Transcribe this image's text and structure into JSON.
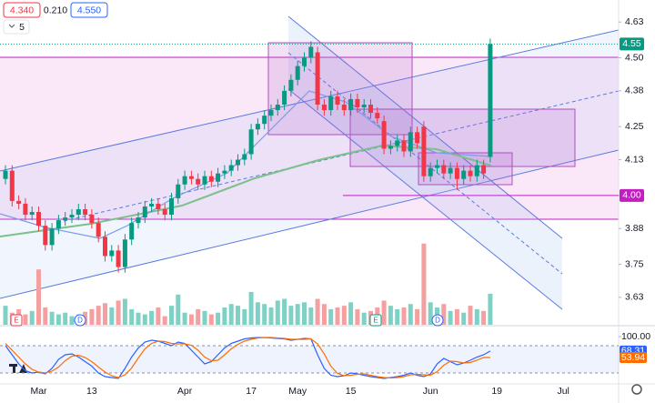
{
  "header": {
    "bid": "4.340",
    "spread": "0.210",
    "ask": "4.550",
    "indicators": "5"
  },
  "events": [
    "E",
    "D",
    "E",
    "D"
  ],
  "chart_data": [
    {
      "type": "candlestick",
      "categories": [
        null,
        null,
        null,
        null,
        null,
        "Mar",
        null,
        null,
        null,
        null,
        null,
        null,
        null,
        "13",
        null,
        null,
        null,
        null,
        null,
        null,
        null,
        null,
        null,
        null,
        null,
        null,
        null,
        "Apr",
        null,
        null,
        null,
        null,
        null,
        null,
        null,
        null,
        null,
        "17",
        null,
        null,
        null,
        null,
        null,
        null,
        "May",
        null,
        null,
        null,
        null,
        null,
        null,
        null,
        "15",
        null,
        null,
        null,
        null,
        null,
        null,
        null,
        null,
        null,
        null,
        null,
        "Jun",
        null,
        null,
        null,
        null,
        null,
        null,
        null,
        null,
        null,
        "19",
        null,
        null,
        null,
        null,
        null,
        null,
        null,
        null,
        null,
        "Jul"
      ],
      "open": [
        4.06,
        4.09,
        3.98,
        3.97,
        3.93,
        3.94,
        3.89,
        3.82,
        3.88,
        3.91,
        3.92,
        3.93,
        3.95,
        3.93,
        3.9,
        3.85,
        3.78,
        3.8,
        3.74,
        3.84,
        3.9,
        3.92,
        3.96,
        3.97,
        3.95,
        3.93,
        3.99,
        4.04,
        4.07,
        4.06,
        4.04,
        4.07,
        4.05,
        4.08,
        4.09,
        4.11,
        4.13,
        4.15,
        4.24,
        4.26,
        4.29,
        4.31,
        4.33,
        4.38,
        4.42,
        4.47,
        4.5,
        4.52,
        4.33,
        4.31,
        4.36,
        4.33,
        4.31,
        4.35,
        4.32,
        4.33,
        4.3,
        4.27,
        4.17,
        4.18,
        4.2,
        4.16,
        4.23,
        4.25,
        4.07,
        4.1,
        4.11,
        4.08,
        4.1,
        4.06,
        4.09,
        4.07,
        4.11,
        4.14,
        null,
        null,
        null,
        null,
        null,
        null,
        null,
        null,
        null,
        null,
        null
      ],
      "high": [
        4.11,
        4.11,
        4.0,
        3.99,
        3.96,
        3.96,
        3.91,
        3.9,
        3.93,
        3.94,
        3.95,
        3.97,
        3.97,
        3.95,
        3.92,
        3.87,
        3.82,
        3.82,
        3.86,
        3.92,
        3.94,
        3.98,
        3.99,
        3.99,
        3.97,
        4.01,
        4.06,
        4.09,
        4.09,
        4.08,
        4.09,
        4.09,
        4.1,
        4.11,
        4.13,
        4.15,
        4.17,
        4.26,
        4.28,
        4.31,
        4.33,
        4.35,
        4.4,
        4.44,
        4.49,
        4.52,
        4.56,
        4.54,
        4.35,
        4.38,
        4.38,
        4.35,
        4.37,
        4.37,
        4.35,
        4.35,
        4.32,
        4.29,
        4.2,
        4.22,
        4.22,
        4.25,
        4.25,
        4.27,
        4.12,
        4.13,
        4.13,
        4.12,
        4.12,
        4.11,
        4.11,
        4.13,
        4.13,
        4.57,
        null,
        null,
        null,
        null,
        null,
        null,
        null,
        null,
        null,
        null,
        null
      ],
      "low": [
        4.04,
        3.96,
        3.95,
        3.91,
        3.91,
        3.87,
        3.8,
        3.8,
        3.86,
        3.89,
        3.9,
        3.91,
        3.91,
        3.88,
        3.83,
        3.76,
        3.76,
        3.72,
        3.72,
        3.82,
        3.88,
        3.9,
        3.94,
        3.93,
        3.91,
        3.91,
        3.97,
        4.02,
        4.04,
        4.02,
        4.02,
        4.03,
        4.03,
        4.06,
        4.07,
        4.09,
        4.11,
        4.13,
        4.22,
        4.24,
        4.27,
        4.29,
        4.31,
        4.36,
        4.4,
        4.45,
        4.48,
        4.31,
        4.29,
        4.29,
        4.31,
        4.29,
        4.29,
        4.3,
        4.3,
        4.28,
        4.26,
        4.15,
        4.15,
        4.16,
        4.14,
        4.14,
        4.17,
        4.05,
        4.05,
        4.08,
        4.06,
        4.06,
        4.02,
        4.04,
        4.05,
        4.05,
        4.06,
        4.12,
        null,
        null,
        null,
        null,
        null,
        null,
        null,
        null,
        null,
        null,
        null
      ],
      "close": [
        4.09,
        3.98,
        3.97,
        3.93,
        3.94,
        3.89,
        3.82,
        3.88,
        3.91,
        3.92,
        3.93,
        3.95,
        3.93,
        3.9,
        3.85,
        3.78,
        3.8,
        3.74,
        3.84,
        3.9,
        3.92,
        3.96,
        3.97,
        3.95,
        3.93,
        3.99,
        4.04,
        4.07,
        4.06,
        4.04,
        4.07,
        4.05,
        4.08,
        4.09,
        4.11,
        4.13,
        4.15,
        4.24,
        4.26,
        4.29,
        4.31,
        4.33,
        4.38,
        4.42,
        4.47,
        4.5,
        4.54,
        4.33,
        4.31,
        4.36,
        4.33,
        4.31,
        4.35,
        4.32,
        4.33,
        4.3,
        4.28,
        4.17,
        4.18,
        4.2,
        4.16,
        4.23,
        4.19,
        4.07,
        4.1,
        4.11,
        4.08,
        4.1,
        4.06,
        4.09,
        4.07,
        4.11,
        4.08,
        4.55,
        null,
        null,
        null,
        null,
        null,
        null,
        null,
        null,
        null,
        null,
        null
      ],
      "up_color": "#089981",
      "down_color": "#f23645",
      "ylim": [
        3.57,
        4.71
      ],
      "yticks": [
        3.63,
        3.75,
        3.88,
        {
          "value": 4.0,
          "label": "4.00"
        },
        4.13,
        4.25,
        4.38,
        {
          "value": 4.5,
          "label": "4.50"
        },
        4.63
      ],
      "hlines": [
        {
          "value": 4.0,
          "label": "4.00",
          "color": "#c21ec2"
        }
      ],
      "last_price_color": "#089981"
    },
    {
      "type": "bar",
      "values": [
        22,
        14,
        18,
        12,
        16,
        64,
        20,
        15,
        12,
        14,
        10,
        12,
        15,
        18,
        22,
        25,
        20,
        28,
        30,
        18,
        14,
        12,
        16,
        20,
        10,
        22,
        35,
        14,
        12,
        18,
        16,
        12,
        14,
        20,
        24,
        22,
        18,
        38,
        26,
        24,
        20,
        28,
        30,
        22,
        24,
        26,
        20,
        30,
        24,
        18,
        20,
        22,
        26,
        18,
        14,
        16,
        20,
        28,
        22,
        18,
        20,
        24,
        18,
        94,
        26,
        20,
        24,
        16,
        18,
        14,
        22,
        18,
        16,
        36,
        null,
        null,
        null,
        null,
        null,
        null,
        null,
        null,
        null,
        null,
        null
      ],
      "up_color": "#7fd1c5",
      "down_color": "#f5a0a0",
      "ylim": [
        0,
        100
      ]
    },
    {
      "type": "line",
      "series": [
        {
          "color": "#2962ff",
          "values": [
            80,
            60,
            40,
            25,
            20,
            22,
            18,
            30,
            50,
            60,
            62,
            55,
            45,
            35,
            20,
            12,
            10,
            8,
            30,
            55,
            75,
            88,
            92,
            90,
            85,
            80,
            88,
            85,
            70,
            55,
            40,
            45,
            60,
            75,
            85,
            90,
            95,
            97,
            98,
            98,
            97,
            96,
            95,
            92,
            94,
            96,
            95,
            60,
            30,
            15,
            12,
            14,
            20,
            18,
            15,
            12,
            10,
            8,
            10,
            12,
            15,
            20,
            15,
            12,
            18,
            40,
            52,
            45,
            38,
            42,
            48,
            55,
            60,
            68.31,
            null,
            null,
            null,
            null,
            null,
            null,
            null,
            null,
            null,
            null,
            null
          ]
        },
        {
          "color": "#ff6d00",
          "values": [
            85,
            70,
            55,
            40,
            28,
            22,
            20,
            24,
            33,
            47,
            57,
            59,
            54,
            45,
            33,
            22,
            14,
            10,
            16,
            31,
            53,
            73,
            85,
            90,
            89,
            85,
            84,
            84,
            81,
            70,
            55,
            47,
            48,
            60,
            73,
            83,
            90,
            94,
            97,
            98,
            98,
            97,
            96,
            94,
            94,
            94,
            95,
            84,
            62,
            35,
            19,
            14,
            15,
            17,
            18,
            15,
            12,
            10,
            9,
            10,
            12,
            16,
            17,
            16,
            15,
            23,
            37,
            46,
            45,
            42,
            43,
            48,
            54,
            53.94,
            null,
            null,
            null,
            null,
            null,
            null,
            null,
            null,
            null,
            null,
            null
          ]
        }
      ],
      "levels": [
        20,
        80
      ],
      "ylim": [
        -8,
        114
      ],
      "yticks": [
        {
          "value": 100,
          "label": "100.00"
        }
      ]
    }
  ]
}
